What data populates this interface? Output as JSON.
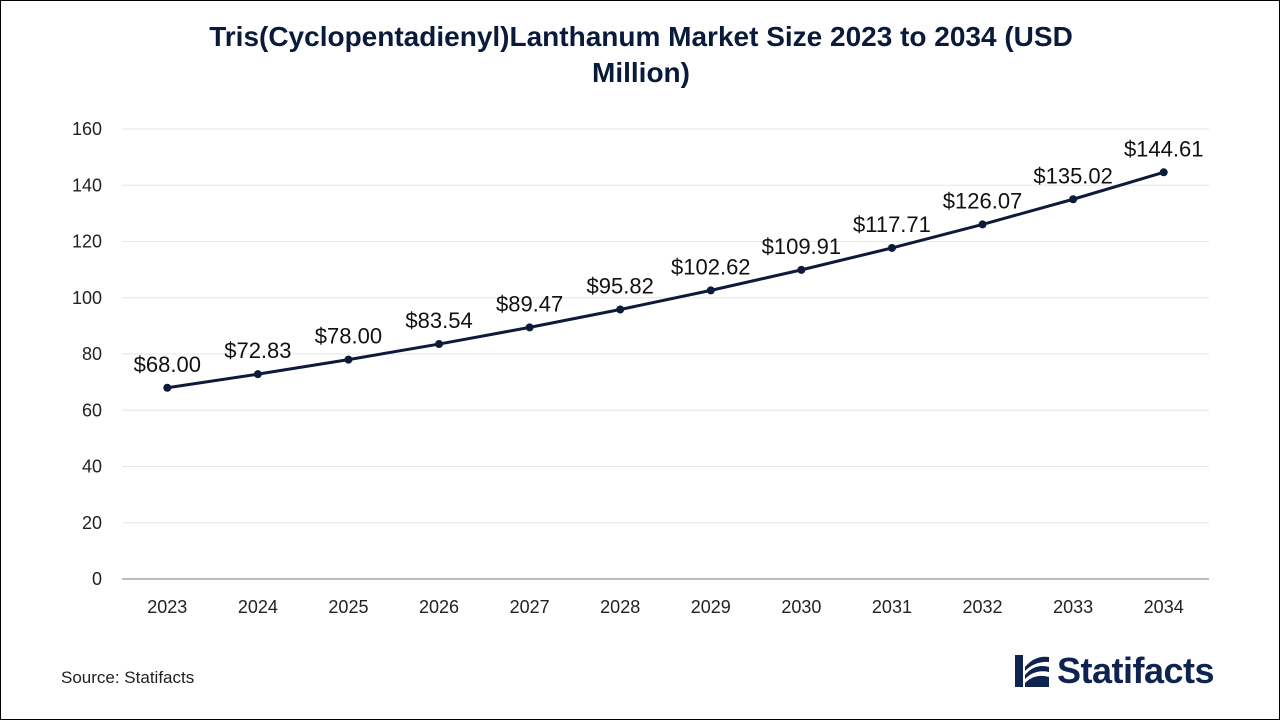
{
  "chart_data": {
    "type": "line",
    "title": "Tris(Cyclopentadienyl)Lanthanum Market Size 2023 to 2034 (USD Million)",
    "categories": [
      "2023",
      "2024",
      "2025",
      "2026",
      "2027",
      "2028",
      "2029",
      "2030",
      "2031",
      "2032",
      "2033",
      "2034"
    ],
    "values": [
      68.0,
      72.83,
      78.0,
      83.54,
      89.47,
      95.82,
      102.62,
      109.91,
      117.71,
      126.07,
      135.02,
      144.61
    ],
    "data_labels": [
      "$68.00",
      "$72.83",
      "$78.00",
      "$83.54",
      "$89.47",
      "$95.82",
      "$102.62",
      "$109.91",
      "$117.71",
      "$126.07",
      "$135.02",
      "$144.61"
    ],
    "ylim": [
      0,
      160
    ],
    "yticks": [
      0,
      20,
      40,
      60,
      80,
      100,
      120,
      140,
      160
    ],
    "xlabel": "",
    "ylabel": "",
    "grid": true,
    "legend": "none",
    "line_color": "#0d1a3a"
  },
  "footer": {
    "source": "Source: Statifacts",
    "brand": "Statifacts"
  }
}
